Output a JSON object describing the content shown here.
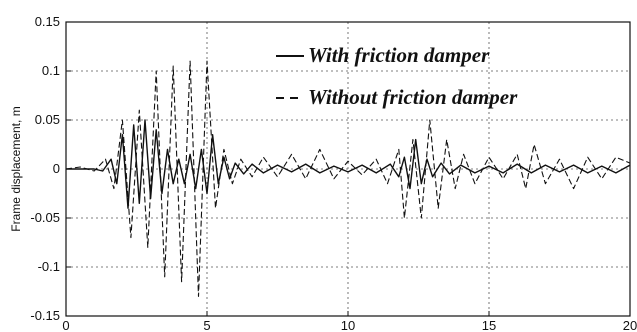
{
  "chart_data": {
    "type": "line",
    "title": "",
    "xlabel": "",
    "ylabel": "Frame displacement, m",
    "xlim": [
      0,
      20
    ],
    "ylim": [
      -0.15,
      0.15
    ],
    "xticks": [
      "0",
      "5",
      "10",
      "15",
      "20"
    ],
    "yticks": [
      "0.15",
      "0.1",
      "0.05",
      "0",
      "-0.05",
      "-0.1",
      "-0.15"
    ],
    "grid": true,
    "legend_position": "top-right",
    "series": [
      {
        "name": "With friction damper",
        "style": "solid",
        "color": "#111111",
        "x": [
          0,
          0.5,
          1.0,
          1.3,
          1.6,
          1.8,
          2.0,
          2.2,
          2.4,
          2.6,
          2.8,
          3.0,
          3.2,
          3.4,
          3.6,
          3.8,
          4.0,
          4.2,
          4.4,
          4.6,
          4.8,
          5.0,
          5.2,
          5.4,
          5.6,
          5.8,
          6.0,
          6.3,
          6.6,
          7.0,
          7.5,
          8.0,
          8.5,
          9.0,
          9.5,
          10.0,
          10.5,
          11.0,
          11.5,
          11.8,
          12.0,
          12.2,
          12.4,
          12.6,
          12.8,
          13.0,
          13.3,
          13.6,
          14.0,
          14.5,
          15.0,
          15.5,
          16.0,
          16.5,
          17.0,
          17.5,
          18.0,
          18.5,
          19.0,
          19.5,
          20.0
        ],
        "y": [
          0,
          0,
          0,
          -0.002,
          0.01,
          -0.015,
          0.035,
          -0.04,
          0.045,
          -0.035,
          0.05,
          -0.03,
          0.04,
          -0.025,
          0.02,
          -0.015,
          0.01,
          -0.015,
          0.015,
          -0.02,
          0.02,
          -0.025,
          0.035,
          -0.015,
          0.012,
          -0.01,
          0.006,
          -0.005,
          0.005,
          -0.004,
          0.004,
          -0.003,
          0.005,
          -0.004,
          0.003,
          -0.003,
          0.004,
          -0.004,
          0.005,
          -0.008,
          0.012,
          -0.02,
          0.03,
          -0.015,
          0.01,
          -0.008,
          0.006,
          -0.005,
          0.004,
          -0.004,
          0.003,
          -0.004,
          0.005,
          -0.004,
          0.004,
          -0.003,
          0.004,
          -0.004,
          0.003,
          -0.004,
          0.004
        ]
      },
      {
        "name": "Without friction damper",
        "style": "dashed",
        "color": "#111111",
        "x": [
          0,
          0.5,
          1.0,
          1.4,
          1.7,
          2.0,
          2.3,
          2.6,
          2.9,
          3.2,
          3.5,
          3.8,
          4.1,
          4.4,
          4.7,
          5.0,
          5.3,
          5.6,
          5.9,
          6.2,
          6.6,
          7.0,
          7.5,
          8.0,
          8.5,
          9.0,
          9.5,
          10.0,
          10.5,
          11.0,
          11.4,
          11.8,
          12.0,
          12.3,
          12.6,
          12.9,
          13.2,
          13.5,
          13.8,
          14.1,
          14.5,
          15.0,
          15.5,
          16.0,
          16.3,
          16.6,
          17.0,
          17.5,
          18.0,
          18.5,
          19.0,
          19.5,
          20.0
        ],
        "y": [
          0,
          0.002,
          -0.002,
          0.01,
          -0.02,
          0.05,
          -0.07,
          0.06,
          -0.08,
          0.1,
          -0.11,
          0.105,
          -0.115,
          0.11,
          -0.13,
          0.11,
          -0.04,
          0.02,
          -0.015,
          0.01,
          -0.008,
          0.012,
          -0.008,
          0.015,
          -0.01,
          0.02,
          -0.01,
          0.008,
          -0.006,
          0.01,
          -0.015,
          0.02,
          -0.05,
          0.03,
          -0.05,
          0.05,
          -0.04,
          0.03,
          -0.02,
          0.015,
          -0.015,
          0.012,
          -0.01,
          0.015,
          -0.02,
          0.025,
          -0.015,
          0.01,
          -0.02,
          0.012,
          -0.01,
          0.012,
          0.006
        ]
      }
    ]
  }
}
